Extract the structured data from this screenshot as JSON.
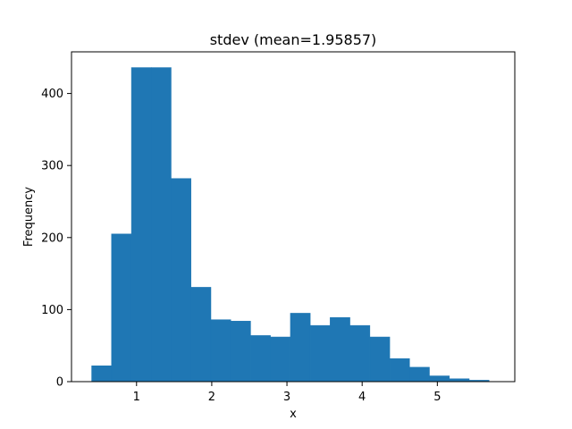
{
  "chart_data": {
    "type": "bar",
    "title": "stdev (mean=1.95857)",
    "xlabel": "x",
    "ylabel": "Frequency",
    "xlim": [
      0.135,
      6.03
    ],
    "ylim": [
      0,
      457.8
    ],
    "xticks": [
      1,
      2,
      3,
      4,
      5
    ],
    "yticks": [
      0,
      100,
      200,
      300,
      400
    ],
    "grid": false,
    "color": "#1f77b4",
    "bin_edges": [
      0.403,
      0.667,
      0.932,
      1.196,
      1.46,
      1.724,
      1.989,
      2.253,
      2.517,
      2.781,
      3.046,
      3.31,
      3.574,
      3.838,
      4.103,
      4.367,
      4.631,
      4.895,
      5.16,
      5.424,
      5.688
    ],
    "values": [
      22,
      205,
      436,
      436,
      282,
      131,
      86,
      84,
      64,
      62,
      95,
      78,
      89,
      78,
      62,
      32,
      20,
      8,
      4,
      2
    ]
  }
}
